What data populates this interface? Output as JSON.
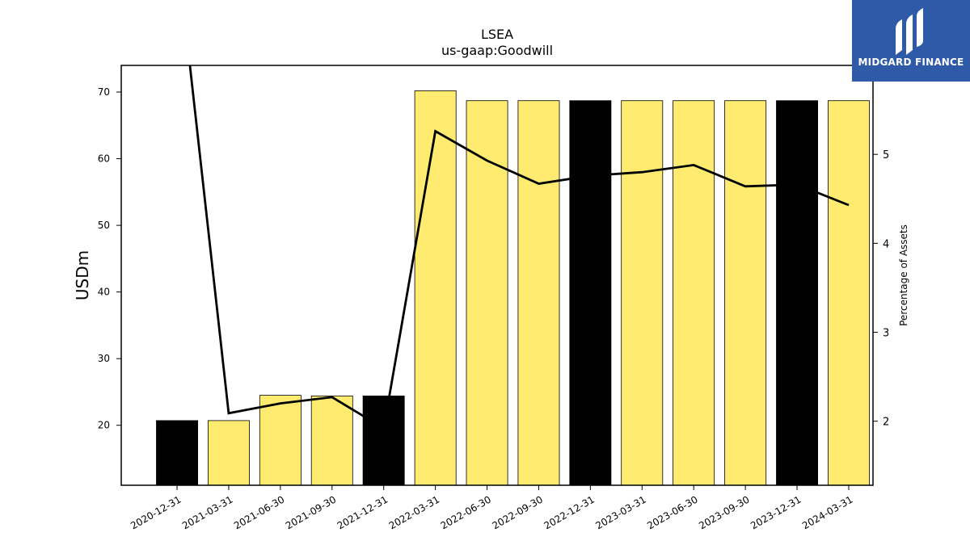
{
  "chart_data": {
    "type": "bar",
    "title": "LSEA",
    "subtitle": "us-gaap:Goodwill",
    "ylabel": "USDm",
    "ylabel_right": "Percentage of Assets",
    "ylim": [
      11,
      74
    ],
    "ylim_right": [
      1.28,
      6.0
    ],
    "yticks": [
      20,
      30,
      40,
      50,
      60,
      70
    ],
    "yticks_right": [
      2,
      3,
      4,
      5
    ],
    "categories": [
      "2020-12-31",
      "2021-03-31",
      "2021-06-30",
      "2021-09-30",
      "2021-12-31",
      "2022-03-31",
      "2022-06-30",
      "2022-09-30",
      "2022-12-31",
      "2023-03-31",
      "2023-06-30",
      "2023-09-30",
      "2023-12-31",
      "2024-03-31"
    ],
    "series": [
      {
        "type": "bar",
        "values": [
          20.7,
          20.7,
          24.5,
          24.4,
          24.4,
          70.2,
          68.7,
          68.7,
          68.7,
          68.7,
          68.7,
          68.7,
          68.7,
          68.7
        ],
        "colors": [
          "#000000",
          "#ffeb70",
          "#ffeb70",
          "#ffeb70",
          "#000000",
          "#ffeb70",
          "#ffeb70",
          "#ffeb70",
          "#000000",
          "#ffeb70",
          "#ffeb70",
          "#ffeb70",
          "#000000",
          "#ffeb70"
        ]
      },
      {
        "type": "line",
        "axis": "right",
        "color": "#000000",
        "values": [
          7.3,
          2.09,
          2.2,
          2.27,
          1.92,
          5.26,
          4.93,
          4.67,
          4.76,
          4.8,
          4.88,
          4.64,
          4.66,
          4.43
        ]
      }
    ],
    "grid": false
  },
  "logo": {
    "text": "MIDGARD FINANCE",
    "icon": "midgard-logo-icon",
    "background": "#2f5aa8"
  }
}
